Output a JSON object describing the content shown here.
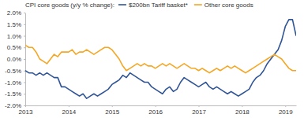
{
  "chart_data": {
    "type": "line",
    "title": "CPI core goods (y/y % change):",
    "categories": [
      "2013",
      null,
      null,
      null,
      null,
      null,
      null,
      null,
      null,
      null,
      null,
      null,
      "2014",
      null,
      null,
      null,
      null,
      null,
      null,
      null,
      null,
      null,
      null,
      null,
      "2015",
      null,
      null,
      null,
      null,
      null,
      null,
      null,
      null,
      null,
      null,
      null,
      "2016",
      null,
      null,
      null,
      null,
      null,
      null,
      null,
      null,
      null,
      null,
      null,
      "2017",
      null,
      null,
      null,
      null,
      null,
      null,
      null,
      null,
      null,
      null,
      null,
      "2018",
      null,
      null,
      null,
      null,
      null,
      null,
      null,
      null,
      null,
      null,
      null,
      "2019",
      null,
      null,
      null
    ],
    "series": [
      {
        "name": "$200bn Tariff basket*",
        "color": "#2f5597",
        "values": [
          -0.5,
          -0.6,
          -0.6,
          -0.7,
          -0.6,
          -0.7,
          -0.6,
          -0.7,
          -0.8,
          -0.8,
          -1.2,
          -1.2,
          -1.3,
          -1.4,
          -1.5,
          -1.6,
          -1.5,
          -1.7,
          -1.6,
          -1.5,
          -1.6,
          -1.5,
          -1.4,
          -1.3,
          -1.1,
          -1.0,
          -0.9,
          -0.7,
          -0.8,
          -0.6,
          -0.7,
          -0.8,
          -0.9,
          -1.0,
          -1.0,
          -1.2,
          -1.3,
          -1.4,
          -1.5,
          -1.3,
          -1.2,
          -1.4,
          -1.3,
          -1.0,
          -0.8,
          -0.9,
          -1.0,
          -1.1,
          -1.2,
          -1.1,
          -1.0,
          -1.2,
          -1.3,
          -1.2,
          -1.3,
          -1.4,
          -1.5,
          -1.4,
          -1.5,
          -1.6,
          -1.5,
          -1.4,
          -1.3,
          -1.0,
          -0.8,
          -0.7,
          -0.5,
          -0.2,
          0.0,
          0.2,
          0.4,
          0.8,
          1.4,
          1.7,
          1.7,
          1.0
        ]
      },
      {
        "name": "Other core goods",
        "color": "#f5a623",
        "values": [
          0.6,
          0.5,
          0.5,
          0.3,
          0.0,
          -0.1,
          -0.2,
          0.0,
          0.2,
          0.1,
          0.3,
          0.3,
          0.3,
          0.4,
          0.2,
          0.3,
          0.3,
          0.4,
          0.3,
          0.2,
          0.3,
          0.4,
          0.5,
          0.5,
          0.4,
          0.2,
          0.0,
          -0.3,
          -0.5,
          -0.4,
          -0.3,
          -0.2,
          -0.3,
          -0.2,
          -0.3,
          -0.3,
          -0.4,
          -0.3,
          -0.2,
          -0.3,
          -0.2,
          -0.3,
          -0.4,
          -0.3,
          -0.2,
          -0.3,
          -0.4,
          -0.4,
          -0.5,
          -0.4,
          -0.5,
          -0.6,
          -0.5,
          -0.4,
          -0.5,
          -0.4,
          -0.3,
          -0.4,
          -0.3,
          -0.4,
          -0.5,
          -0.6,
          -0.5,
          -0.4,
          -0.3,
          -0.2,
          -0.1,
          0.0,
          0.1,
          0.2,
          0.1,
          0.0,
          -0.2,
          -0.4,
          -0.5,
          -0.5
        ]
      }
    ],
    "ylim": [
      -2,
      2
    ],
    "yticks": [
      {
        "value": -2,
        "label": "-2.0%"
      },
      {
        "value": -1.5,
        "label": "-1.5%"
      },
      {
        "value": -1,
        "label": "-1.0%"
      },
      {
        "value": -0.5,
        "label": "-0.5%"
      },
      {
        "value": 0,
        "label": "0.0%"
      },
      {
        "value": 0.5,
        "label": "0.5%"
      },
      {
        "value": 1,
        "label": "1.0%"
      },
      {
        "value": 1.5,
        "label": "1.5%"
      },
      {
        "value": 2,
        "label": "2.0%"
      }
    ],
    "grid": false,
    "legend": "top"
  }
}
